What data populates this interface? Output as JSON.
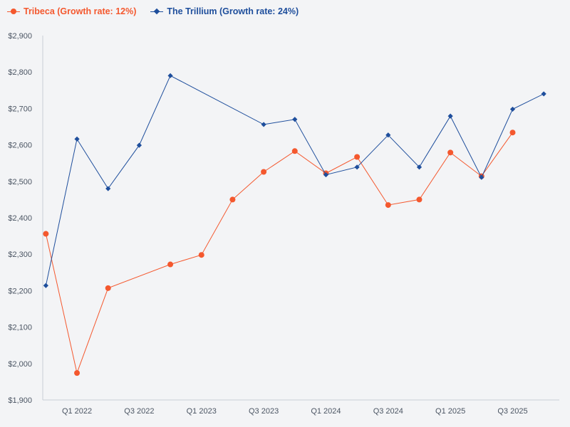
{
  "chart_data": {
    "type": "line",
    "title": "",
    "xlabel": "",
    "ylabel": "",
    "ylim": [
      1900,
      2900
    ],
    "yticks": [
      "$1,900",
      "$2,000",
      "$2,100",
      "$2,200",
      "$2,300",
      "$2,400",
      "$2,500",
      "$2,600",
      "$2,700",
      "$2,800",
      "$2,900"
    ],
    "ytick_values": [
      1900,
      2000,
      2100,
      2200,
      2300,
      2400,
      2500,
      2600,
      2700,
      2800,
      2900
    ],
    "xlim": [
      2021.85,
      2026.0
    ],
    "xticks": [
      {
        "label": "Q1 2022",
        "x": 2022.125
      },
      {
        "label": "Q3 2022",
        "x": 2022.625
      },
      {
        "label": "Q1 2023",
        "x": 2023.125
      },
      {
        "label": "Q3 2023",
        "x": 2023.625
      },
      {
        "label": "Q1 2024",
        "x": 2024.125
      },
      {
        "label": "Q3 2024",
        "x": 2024.625
      },
      {
        "label": "Q1 2025",
        "x": 2025.125
      },
      {
        "label": "Q3 2025",
        "x": 2025.625
      }
    ],
    "legend_position": "top-left",
    "series": [
      {
        "name": "Tribeca (Growth rate: 12%)",
        "color": "#f4582e",
        "marker": "circle",
        "x": [
          2021.875,
          2022.125,
          2022.375,
          2022.875,
          2023.125,
          2023.375,
          2023.625,
          2023.875,
          2024.125,
          2024.375,
          2024.625,
          2024.875,
          2025.125,
          2025.375,
          2025.625
        ],
        "y": [
          2356,
          1974,
          2207,
          2272,
          2298,
          2450,
          2526,
          2583,
          2522,
          2567,
          2435,
          2450,
          2579,
          2514,
          2634
        ]
      },
      {
        "name": "The Trillium (Growth rate: 24%)",
        "color": "#1e4e9c",
        "marker": "diamond",
        "x": [
          2021.875,
          2022.125,
          2022.375,
          2022.625,
          2022.875,
          2023.625,
          2023.875,
          2024.125,
          2024.375,
          2024.625,
          2024.875,
          2025.125,
          2025.375,
          2025.625,
          2025.875
        ],
        "y": [
          2214,
          2616,
          2480,
          2599,
          2790,
          2656,
          2670,
          2518,
          2539,
          2627,
          2539,
          2679,
          2511,
          2698,
          2740
        ]
      }
    ]
  }
}
